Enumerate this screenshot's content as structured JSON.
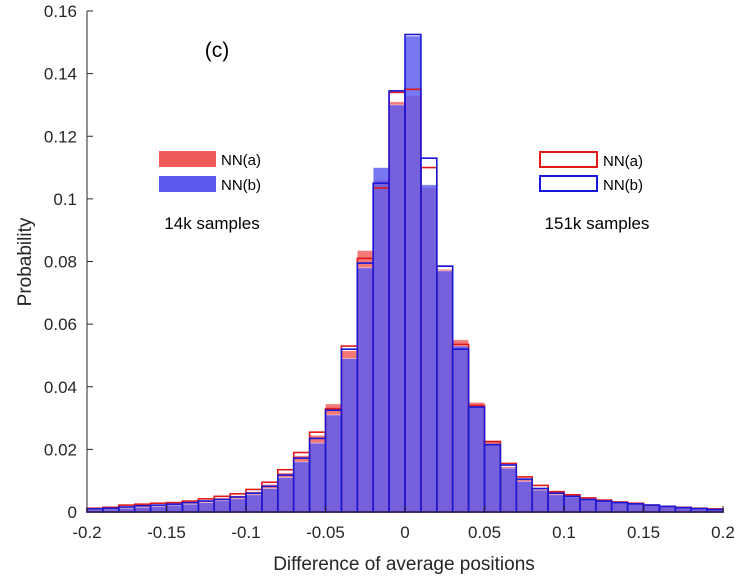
{
  "chart_data": {
    "type": "bar",
    "panel_label": "(c)",
    "xlabel": "Difference of average positions",
    "ylabel": "Probability",
    "xlim": [
      -0.2,
      0.2
    ],
    "ylim": [
      0,
      0.16
    ],
    "x_ticks": [
      "-0.2",
      "-0.15",
      "-0.1",
      "-0.05",
      "0",
      "0.05",
      "0.1",
      "0.15",
      "0.2"
    ],
    "y_ticks": [
      "0",
      "0.02",
      "0.04",
      "0.06",
      "0.08",
      "0.1",
      "0.12",
      "0.14",
      "0.16"
    ],
    "bin_edges": [
      -0.2,
      -0.19,
      -0.18,
      -0.17,
      -0.16,
      -0.15,
      -0.14,
      -0.13,
      -0.12,
      -0.11,
      -0.1,
      -0.09,
      -0.08,
      -0.07,
      -0.06,
      -0.05,
      -0.04,
      -0.03,
      -0.02,
      -0.01,
      0,
      0.01,
      0.02,
      0.03,
      0.04,
      0.05,
      0.06,
      0.07,
      0.08,
      0.09,
      0.1,
      0.11,
      0.12,
      0.13,
      0.14,
      0.15,
      0.16,
      0.17,
      0.18,
      0.19,
      0.2
    ],
    "groups": [
      {
        "label": "14k samples",
        "style": "filled",
        "series": [
          {
            "name": "NN(a)",
            "color": "#f05a5a",
            "values": [
              0.001,
              0.0013,
              0.0018,
              0.0022,
              0.0023,
              0.0028,
              0.0032,
              0.0038,
              0.0045,
              0.0052,
              0.0065,
              0.0088,
              0.0125,
              0.018,
              0.0245,
              0.0345,
              0.0515,
              0.0835,
              0.106,
              0.131,
              0.133,
              0.1035,
              0.0775,
              0.055,
              0.035,
              0.0228,
              0.0145,
              0.0105,
              0.0075,
              0.006,
              0.0052,
              0.0042,
              0.0036,
              0.0032,
              0.0028,
              0.0022,
              0.0018,
              0.0015,
              0.0012,
              0.001
            ]
          },
          {
            "name": "NN(b)",
            "color": "#5a5af0",
            "values": [
              0.0008,
              0.001,
              0.0012,
              0.0015,
              0.0018,
              0.0022,
              0.0025,
              0.003,
              0.0036,
              0.0042,
              0.0055,
              0.0075,
              0.011,
              0.016,
              0.022,
              0.031,
              0.049,
              0.078,
              0.11,
              0.13,
              0.152,
              0.1045,
              0.077,
              0.053,
              0.0335,
              0.0215,
              0.014,
              0.0098,
              0.007,
              0.0055,
              0.0048,
              0.004,
              0.0035,
              0.003,
              0.0028,
              0.0025,
              0.0018,
              0.0015,
              0.001,
              0.0008
            ]
          }
        ]
      },
      {
        "label": "151k samples",
        "style": "outline",
        "series": [
          {
            "name": "NN(a)",
            "color": "#e01818",
            "values": [
              0.0012,
              0.0015,
              0.0022,
              0.0025,
              0.0028,
              0.003,
              0.0035,
              0.0042,
              0.005,
              0.0058,
              0.0072,
              0.0095,
              0.0135,
              0.019,
              0.0255,
              0.033,
              0.053,
              0.081,
              0.1035,
              0.134,
              0.135,
              0.11,
              0.0785,
              0.0535,
              0.034,
              0.0225,
              0.0155,
              0.0112,
              0.0085,
              0.0065,
              0.0055,
              0.0045,
              0.0038,
              0.0032,
              0.0028,
              0.0022,
              0.0018,
              0.0015,
              0.0012,
              0.001
            ]
          },
          {
            "name": "NN(b)",
            "color": "#1818d8",
            "values": [
              0.001,
              0.0012,
              0.0016,
              0.002,
              0.0022,
              0.0025,
              0.003,
              0.0035,
              0.004,
              0.0048,
              0.006,
              0.0082,
              0.0118,
              0.0172,
              0.0235,
              0.0325,
              0.052,
              0.0795,
              0.105,
              0.1345,
              0.1525,
              0.113,
              0.0785,
              0.052,
              0.0335,
              0.0215,
              0.015,
              0.0105,
              0.0075,
              0.006,
              0.005,
              0.004,
              0.0035,
              0.003,
              0.0026,
              0.0022,
              0.0018,
              0.0014,
              0.0011,
              0.0008
            ]
          }
        ]
      }
    ],
    "grid": false,
    "legends": [
      "upper-left",
      "upper-right"
    ]
  }
}
